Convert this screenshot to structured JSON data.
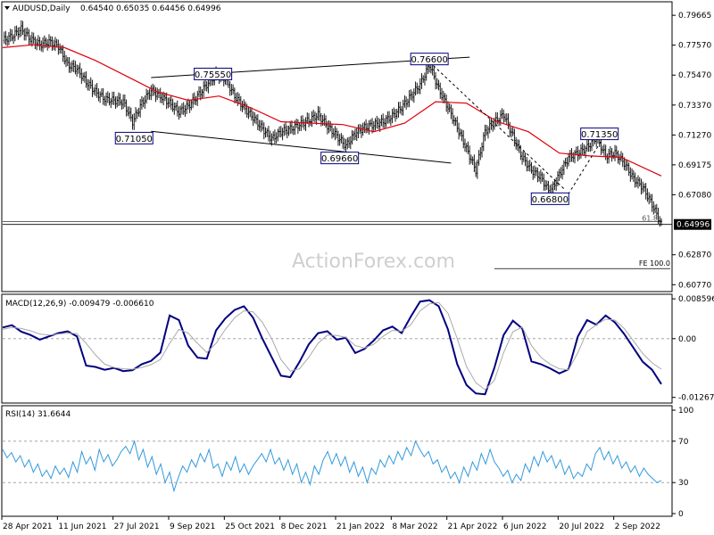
{
  "header": {
    "symbol": "AUDUSD,Daily",
    "ohlc": "0.64540 0.65035 0.64456 0.64996"
  },
  "watermark": "ActionForex.com",
  "colors": {
    "candle": "#1a1a1a",
    "ma": "#e0000b",
    "macd": "#000080",
    "signal": "#aaaaaa",
    "rsi": "#3399dd",
    "level_box_border": "#000080",
    "last_price_bg": "#000000"
  },
  "chart_data": [
    {
      "type": "candlestick",
      "title": "AUDUSD,Daily",
      "x_tick_labels": [
        "28 Apr 2021",
        "11 Jun 2021",
        "27 Jul 2021",
        "9 Sep 2021",
        "25 Oct 2021",
        "8 Dec 2021",
        "21 Jan 2022",
        "8 Mar 2022",
        "21 Apr 2022",
        "6 Jun 2022",
        "20 Jul 2022",
        "2 Sep 2022"
      ],
      "y_tick_labels": [
        "0.79665",
        "0.77570",
        "0.75470",
        "0.73370",
        "0.71270",
        "0.69175",
        "0.67080",
        "0.62870",
        "0.60770"
      ],
      "ylim": [
        0.6035,
        0.8055
      ],
      "last_price": "0.64996",
      "moving_average_present": true,
      "close_path": [
        {
          "x": 0,
          "y": 0.779
        },
        {
          "x": 6,
          "y": 0.782
        },
        {
          "x": 12,
          "y": 0.787
        },
        {
          "x": 18,
          "y": 0.78
        },
        {
          "x": 24,
          "y": 0.776
        },
        {
          "x": 30,
          "y": 0.778
        },
        {
          "x": 36,
          "y": 0.775
        },
        {
          "x": 42,
          "y": 0.762
        },
        {
          "x": 48,
          "y": 0.759
        },
        {
          "x": 54,
          "y": 0.75
        },
        {
          "x": 60,
          "y": 0.743
        },
        {
          "x": 66,
          "y": 0.738
        },
        {
          "x": 72,
          "y": 0.737
        },
        {
          "x": 78,
          "y": 0.736
        },
        {
          "x": 84,
          "y": 0.722
        },
        {
          "x": 90,
          "y": 0.735
        },
        {
          "x": 96,
          "y": 0.744
        },
        {
          "x": 102,
          "y": 0.74
        },
        {
          "x": 108,
          "y": 0.735
        },
        {
          "x": 114,
          "y": 0.729
        },
        {
          "x": 120,
          "y": 0.733
        },
        {
          "x": 126,
          "y": 0.74
        },
        {
          "x": 132,
          "y": 0.748
        },
        {
          "x": 138,
          "y": 0.755
        },
        {
          "x": 144,
          "y": 0.752
        },
        {
          "x": 150,
          "y": 0.74
        },
        {
          "x": 156,
          "y": 0.732
        },
        {
          "x": 162,
          "y": 0.725
        },
        {
          "x": 168,
          "y": 0.717
        },
        {
          "x": 174,
          "y": 0.71
        },
        {
          "x": 180,
          "y": 0.715
        },
        {
          "x": 186,
          "y": 0.717
        },
        {
          "x": 192,
          "y": 0.72
        },
        {
          "x": 198,
          "y": 0.723
        },
        {
          "x": 204,
          "y": 0.727
        },
        {
          "x": 210,
          "y": 0.719
        },
        {
          "x": 216,
          "y": 0.712
        },
        {
          "x": 222,
          "y": 0.705
        },
        {
          "x": 228,
          "y": 0.714
        },
        {
          "x": 234,
          "y": 0.718
        },
        {
          "x": 240,
          "y": 0.72
        },
        {
          "x": 246,
          "y": 0.722
        },
        {
          "x": 252,
          "y": 0.726
        },
        {
          "x": 258,
          "y": 0.732
        },
        {
          "x": 264,
          "y": 0.74
        },
        {
          "x": 270,
          "y": 0.748
        },
        {
          "x": 276,
          "y": 0.762
        },
        {
          "x": 282,
          "y": 0.745
        },
        {
          "x": 288,
          "y": 0.732
        },
        {
          "x": 294,
          "y": 0.718
        },
        {
          "x": 300,
          "y": 0.703
        },
        {
          "x": 306,
          "y": 0.688
        },
        {
          "x": 312,
          "y": 0.715
        },
        {
          "x": 318,
          "y": 0.722
        },
        {
          "x": 324,
          "y": 0.727
        },
        {
          "x": 330,
          "y": 0.712
        },
        {
          "x": 336,
          "y": 0.697
        },
        {
          "x": 342,
          "y": 0.688
        },
        {
          "x": 348,
          "y": 0.683
        },
        {
          "x": 354,
          "y": 0.672
        },
        {
          "x": 360,
          "y": 0.685
        },
        {
          "x": 366,
          "y": 0.697
        },
        {
          "x": 372,
          "y": 0.7
        },
        {
          "x": 378,
          "y": 0.704
        },
        {
          "x": 384,
          "y": 0.711
        },
        {
          "x": 390,
          "y": 0.698
        },
        {
          "x": 396,
          "y": 0.7
        },
        {
          "x": 402,
          "y": 0.693
        },
        {
          "x": 408,
          "y": 0.682
        },
        {
          "x": 414,
          "y": 0.676
        },
        {
          "x": 420,
          "y": 0.664
        },
        {
          "x": 426,
          "y": 0.65
        }
      ],
      "ma_path": [
        {
          "x": 0,
          "y": 0.774
        },
        {
          "x": 20,
          "y": 0.776
        },
        {
          "x": 40,
          "y": 0.774
        },
        {
          "x": 60,
          "y": 0.765
        },
        {
          "x": 80,
          "y": 0.754
        },
        {
          "x": 100,
          "y": 0.743
        },
        {
          "x": 120,
          "y": 0.737
        },
        {
          "x": 140,
          "y": 0.74
        },
        {
          "x": 160,
          "y": 0.732
        },
        {
          "x": 180,
          "y": 0.722
        },
        {
          "x": 200,
          "y": 0.721
        },
        {
          "x": 220,
          "y": 0.72
        },
        {
          "x": 240,
          "y": 0.715
        },
        {
          "x": 260,
          "y": 0.721
        },
        {
          "x": 280,
          "y": 0.736
        },
        {
          "x": 300,
          "y": 0.735
        },
        {
          "x": 320,
          "y": 0.722
        },
        {
          "x": 340,
          "y": 0.715
        },
        {
          "x": 360,
          "y": 0.7
        },
        {
          "x": 380,
          "y": 0.698
        },
        {
          "x": 400,
          "y": 0.697
        },
        {
          "x": 426,
          "y": 0.684
        }
      ],
      "trendlines": [
        {
          "x1": 96,
          "y1": 0.753,
          "x2": 302,
          "y2": 0.7673,
          "dashed": false
        },
        {
          "x1": 96,
          "y1": 0.7153,
          "x2": 290,
          "y2": 0.693,
          "dashed": false
        },
        {
          "x1": 276,
          "y1": 0.764,
          "x2": 364,
          "y2": 0.674,
          "dashed": true
        },
        {
          "x1": 364,
          "y1": 0.668,
          "x2": 390,
          "y2": 0.7135,
          "dashed": true
        }
      ],
      "level_labels": [
        {
          "text": "0.71050",
          "x": 85,
          "y": 0.7105
        },
        {
          "text": "0.75550",
          "x": 136,
          "y": 0.7555
        },
        {
          "text": "0.76600",
          "x": 276,
          "y": 0.766
        },
        {
          "text": "0.69660",
          "x": 218,
          "y": 0.6966
        },
        {
          "text": "0.66800",
          "x": 354,
          "y": 0.668
        },
        {
          "text": "0.71350",
          "x": 386,
          "y": 0.7135
        }
      ],
      "fib_levels": [
        {
          "label": "61.8",
          "y": 0.652
        },
        {
          "label": "FE 100.0",
          "y": 0.619
        }
      ]
    },
    {
      "type": "line",
      "title": "MACD(12,26,9) -0.009479 -0.006610",
      "y_tick_labels": [
        "0.008596",
        "0.00",
        "-0.01267"
      ],
      "ylim": [
        -0.0135,
        0.0092
      ],
      "zero_line": 0.0,
      "series": [
        {
          "name": "MACD",
          "values": [
            0.0024,
            0.0029,
            0.0015,
            0.0008,
            -0.0002,
            0.0005,
            0.0012,
            0.0016,
            0.0005,
            -0.0058,
            -0.0061,
            -0.0067,
            -0.0063,
            -0.007,
            -0.0068,
            -0.0055,
            -0.0048,
            -0.003,
            0.005,
            0.004,
            -0.0015,
            -0.0041,
            -0.0043,
            0.0018,
            0.0044,
            0.0062,
            0.007,
            0.0045,
            0.0,
            -0.004,
            -0.008,
            -0.0083,
            -0.005,
            -0.0012,
            0.0012,
            0.0016,
            -0.0002,
            0.0002,
            -0.0031,
            -0.0022,
            -0.0004,
            0.0018,
            0.0026,
            0.0012,
            0.0048,
            0.008,
            0.0083,
            0.007,
            0.002,
            -0.0055,
            -0.01,
            -0.0118,
            -0.012,
            -0.0063,
            0.0008,
            0.0039,
            0.0022,
            -0.0049,
            -0.0055,
            -0.0064,
            -0.0075,
            -0.0066,
            0.0005,
            0.004,
            0.003,
            0.005,
            0.0035,
            0.001,
            -0.002,
            -0.005,
            -0.0067,
            -0.0098
          ]
        },
        {
          "name": "Signal",
          "values": [
            0.002,
            0.0024,
            0.0022,
            0.0017,
            0.001,
            0.0008,
            0.001,
            0.0012,
            0.0011,
            -0.001,
            -0.0035,
            -0.0055,
            -0.0062,
            -0.0065,
            -0.0066,
            -0.0062,
            -0.0056,
            -0.0045,
            -0.001,
            0.002,
            0.0012,
            -0.001,
            -0.003,
            -0.001,
            0.002,
            0.0045,
            0.006,
            0.0058,
            0.0035,
            0.0,
            -0.0045,
            -0.007,
            -0.0065,
            -0.004,
            -0.001,
            0.0008,
            0.0007,
            0.0003,
            -0.0015,
            -0.002,
            -0.0012,
            0.0005,
            0.0018,
            0.0016,
            0.003,
            0.006,
            0.0075,
            0.0078,
            0.0055,
            0.0,
            -0.006,
            -0.0095,
            -0.011,
            -0.009,
            -0.003,
            0.0015,
            0.0025,
            -0.0015,
            -0.004,
            -0.0055,
            -0.0065,
            -0.0067,
            -0.003,
            0.0015,
            0.003,
            0.0042,
            0.004,
            0.0022,
            -0.0005,
            -0.0032,
            -0.0052,
            -0.0066
          ]
        }
      ]
    },
    {
      "type": "line",
      "title": "RSI(14) 31.6644",
      "y_tick_labels": [
        "100",
        "70",
        "30",
        "0"
      ],
      "ylim": [
        0,
        100
      ],
      "levels": [
        70,
        30
      ],
      "series": [
        {
          "name": "RSI",
          "values": [
            62,
            54,
            59,
            50,
            56,
            45,
            52,
            40,
            48,
            36,
            42,
            34,
            46,
            38,
            44,
            35,
            50,
            40,
            60,
            48,
            55,
            42,
            62,
            50,
            57,
            46,
            52,
            60,
            65,
            58,
            70,
            52,
            62,
            45,
            55,
            38,
            48,
            30,
            40,
            22,
            35,
            46,
            40,
            52,
            45,
            58,
            50,
            62,
            44,
            48,
            36,
            50,
            42,
            55,
            40,
            48,
            38,
            46,
            52,
            58,
            50,
            62,
            48,
            54,
            42,
            52,
            38,
            48,
            30,
            40,
            28,
            46,
            38,
            52,
            60,
            48,
            58,
            46,
            55,
            40,
            50,
            36,
            45,
            30,
            44,
            38,
            52,
            45,
            56,
            48,
            60,
            52,
            64,
            56,
            70,
            62,
            55,
            60,
            48,
            52,
            40,
            46,
            34,
            40,
            30,
            45,
            36,
            50,
            42,
            58,
            48,
            62,
            50,
            44,
            36,
            42,
            30,
            38,
            32,
            48,
            40,
            55,
            46,
            60,
            50,
            56,
            44,
            52,
            38,
            46,
            34,
            40,
            36,
            48,
            42,
            58,
            64,
            52,
            60,
            48,
            56,
            44,
            50,
            40,
            46,
            36,
            44,
            38,
            34,
            30,
            32
          ]
        }
      ]
    }
  ]
}
